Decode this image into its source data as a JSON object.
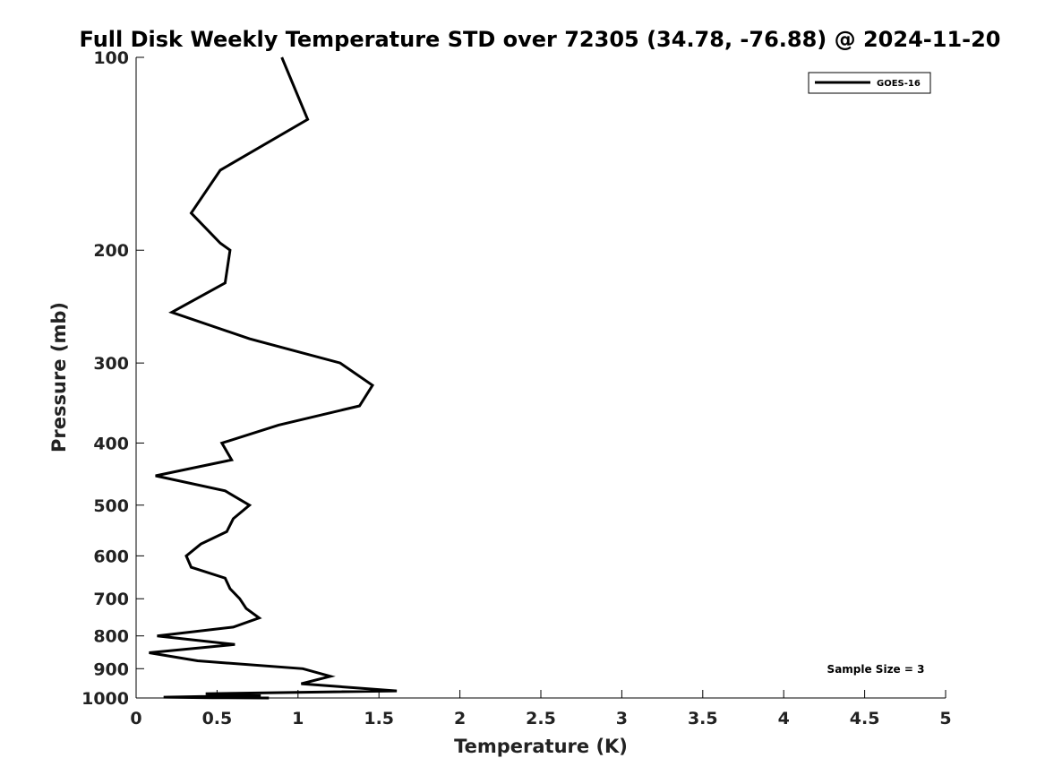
{
  "chart_data": {
    "type": "line",
    "title": "Full Disk Weekly Temperature STD over 72305 (34.78, -76.88) @ 2024-11-20",
    "xlabel": "Temperature (K)",
    "ylabel": "Pressure (mb)",
    "xlim": [
      0,
      5
    ],
    "ylim": [
      1000,
      100
    ],
    "y_scale": "log",
    "y_reversed": true,
    "x_ticks": [
      0,
      0.5,
      1,
      1.5,
      2,
      2.5,
      3,
      3.5,
      4,
      4.5,
      5
    ],
    "x_tick_labels": [
      "0",
      "0.5",
      "1",
      "1.5",
      "2",
      "2.5",
      "3",
      "3.5",
      "4",
      "4.5",
      "5"
    ],
    "y_ticks": [
      100,
      200,
      300,
      400,
      500,
      600,
      700,
      800,
      900,
      1000
    ],
    "y_tick_labels": [
      "100",
      "200",
      "300",
      "400",
      "500",
      "600",
      "700",
      "800",
      "900",
      "1000"
    ],
    "grid": false,
    "legend": {
      "position": "top-right",
      "entries": [
        "GOES-16"
      ]
    },
    "annotation": "Sample Size = 3",
    "series": [
      {
        "name": "GOES-16",
        "color": "#000000",
        "points": [
          [
            0.9,
            100
          ],
          [
            1.06,
            125
          ],
          [
            0.52,
            150
          ],
          [
            0.34,
            175
          ],
          [
            0.52,
            195
          ],
          [
            0.58,
            200
          ],
          [
            0.55,
            225
          ],
          [
            0.22,
            250
          ],
          [
            0.7,
            275
          ],
          [
            1.26,
            300
          ],
          [
            1.46,
            325
          ],
          [
            1.38,
            350
          ],
          [
            0.88,
            375
          ],
          [
            0.53,
            400
          ],
          [
            0.59,
            425
          ],
          [
            0.12,
            450
          ],
          [
            0.55,
            475
          ],
          [
            0.7,
            500
          ],
          [
            0.6,
            525
          ],
          [
            0.56,
            550
          ],
          [
            0.4,
            575
          ],
          [
            0.31,
            600
          ],
          [
            0.34,
            625
          ],
          [
            0.55,
            650
          ],
          [
            0.58,
            675
          ],
          [
            0.64,
            700
          ],
          [
            0.68,
            725
          ],
          [
            0.76,
            750
          ],
          [
            0.6,
            775
          ],
          [
            0.13,
            800
          ],
          [
            0.61,
            825
          ],
          [
            0.08,
            850
          ],
          [
            0.38,
            875
          ],
          [
            1.03,
            900
          ],
          [
            1.2,
            925
          ],
          [
            1.02,
            950
          ],
          [
            1.61,
            975
          ],
          [
            0.43,
            985
          ],
          [
            0.77,
            992
          ],
          [
            0.4,
            995
          ],
          [
            0.17,
            997
          ],
          [
            0.47,
            999
          ],
          [
            0.82,
            1000
          ]
        ]
      }
    ]
  }
}
